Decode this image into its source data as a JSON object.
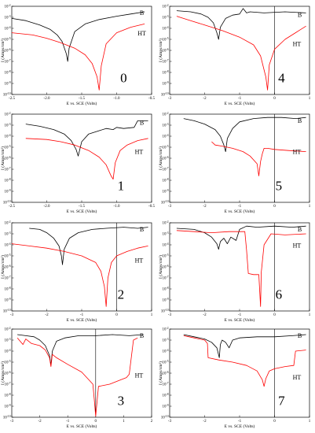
{
  "chart_data": [
    {
      "type": "line",
      "panel_label": "0",
      "xlabel": "E vs. SCE (Volts)",
      "ylabel": "I (Amps/cm²)",
      "xlim": [
        -2.5,
        -0.5
      ],
      "ylim_log10": [
        -10,
        -2
      ],
      "xticks": [
        -2.5,
        -2.0,
        -1.5,
        -1.0,
        -0.5
      ],
      "xtick_labels": [
        "-2.5",
        "-2.0",
        "-1.5",
        "-1.0",
        "-0.5"
      ],
      "yticks_log10": [
        -10,
        -9,
        -8,
        -7,
        -6,
        -5,
        -4,
        -3,
        -2
      ],
      "vline": null,
      "series": [
        {
          "name": "B",
          "color": "#000000",
          "x": [
            -2.5,
            -2.3,
            -2.1,
            -1.95,
            -1.85,
            -1.78,
            -1.72,
            -1.7,
            -1.68,
            -1.6,
            -1.45,
            -1.25,
            -1.0,
            -0.8,
            -0.6
          ],
          "y": [
            -3.1,
            -3.3,
            -3.7,
            -4.1,
            -4.6,
            -5.2,
            -6.3,
            -7.0,
            -5.8,
            -4.3,
            -3.6,
            -3.2,
            -2.9,
            -2.7,
            -2.5
          ]
        },
        {
          "name": "HT",
          "color": "#ff0000",
          "x": [
            -2.5,
            -2.2,
            -2.0,
            -1.8,
            -1.6,
            -1.45,
            -1.35,
            -1.28,
            -1.25,
            -1.22,
            -1.15,
            -1.0,
            -0.8,
            -0.6
          ],
          "y": [
            -4.4,
            -4.6,
            -4.9,
            -5.3,
            -5.8,
            -6.4,
            -7.2,
            -8.4,
            -9.6,
            -7.4,
            -5.4,
            -4.4,
            -3.9,
            -3.6
          ]
        }
      ]
    },
    {
      "type": "line",
      "panel_label": "4",
      "xlabel": "E vs. SCE (Volts)",
      "ylabel": "I (Amps/cm²)",
      "xlim": [
        -3,
        1
      ],
      "ylim_log10": [
        -10,
        -2
      ],
      "xticks": [
        -3,
        -2,
        -1,
        0,
        1
      ],
      "xtick_labels": [
        "-3",
        "-2",
        "-1",
        "0",
        "1"
      ],
      "yticks_log10": [
        -10,
        -9,
        -8,
        -7,
        -6,
        -5,
        -4,
        -3,
        -2
      ],
      "vline": 0,
      "series": [
        {
          "name": "B",
          "color": "#000000",
          "x": [
            -2.8,
            -2.4,
            -2.1,
            -1.9,
            -1.75,
            -1.65,
            -1.6,
            -1.55,
            -1.4,
            -1.2,
            -1.0,
            -0.9,
            -0.8,
            -0.7,
            -0.3,
            0.3,
            0.9
          ],
          "y": [
            -2.4,
            -2.5,
            -2.7,
            -3.0,
            -3.5,
            -4.4,
            -5.0,
            -3.9,
            -3.1,
            -2.8,
            -2.7,
            -2.2,
            -2.6,
            -2.5,
            -2.6,
            -2.5,
            -2.6
          ]
        },
        {
          "name": "HT",
          "color": "#ff0000",
          "x": [
            -2.8,
            -2.4,
            -2.0,
            -1.5,
            -1.0,
            -0.6,
            -0.4,
            -0.25,
            -0.2,
            -0.15,
            0.0,
            0.3,
            0.6,
            0.9
          ],
          "y": [
            -2.9,
            -3.3,
            -3.7,
            -4.2,
            -4.8,
            -5.5,
            -6.5,
            -8.4,
            -9.6,
            -7.3,
            -5.9,
            -5.0,
            -4.4,
            -3.8
          ]
        }
      ]
    },
    {
      "type": "line",
      "panel_label": "1",
      "xlabel": "E vs. SCE (Volts)",
      "ylabel": "I (Amps/cm²)",
      "xlim": [
        -2.5,
        -0.5
      ],
      "ylim_log10": [
        -10,
        -2
      ],
      "xticks": [
        -2.5,
        -2.0,
        -1.5,
        -1.0,
        -0.5
      ],
      "xtick_labels": [
        "-2.5",
        "-2.0",
        "-1.5",
        "-1.0",
        "-0.5"
      ],
      "yticks_log10": [
        -10,
        -9,
        -8,
        -7,
        -6,
        -5,
        -4,
        -3,
        -2
      ],
      "vline": null,
      "series": [
        {
          "name": "B",
          "color": "#000000",
          "x": [
            -2.3,
            -2.1,
            -1.9,
            -1.75,
            -1.65,
            -1.58,
            -1.55,
            -1.5,
            -1.4,
            -1.25,
            -1.15,
            -1.05,
            -1.0,
            -0.9,
            -0.75,
            -0.7,
            -0.55
          ],
          "y": [
            -2.9,
            -3.1,
            -3.4,
            -3.8,
            -4.4,
            -5.2,
            -5.8,
            -4.5,
            -3.8,
            -3.5,
            -3.3,
            -3.4,
            -3.2,
            -3.3,
            -3.2,
            -2.6,
            -2.6
          ]
        },
        {
          "name": "HT",
          "color": "#ff0000",
          "x": [
            -2.3,
            -2.0,
            -1.8,
            -1.6,
            -1.4,
            -1.25,
            -1.15,
            -1.08,
            -1.05,
            -1.02,
            -0.95,
            -0.85,
            -0.7,
            -0.55
          ],
          "y": [
            -4.2,
            -4.3,
            -4.5,
            -4.8,
            -5.3,
            -5.9,
            -6.6,
            -7.6,
            -7.9,
            -6.4,
            -5.3,
            -4.8,
            -4.4,
            -4.2
          ]
        }
      ]
    },
    {
      "type": "line",
      "panel_label": "5",
      "xlabel": "E vs. SCE (Volts)",
      "ylabel": "I (Amps/cm²)",
      "xlim": [
        -3,
        1
      ],
      "ylim_log10": [
        -10,
        -2
      ],
      "xticks": [
        -3,
        -2,
        -1,
        0,
        1
      ],
      "xtick_labels": [
        "-3",
        "-2",
        "-1",
        "0",
        "1"
      ],
      "yticks_log10": [
        -10,
        -9,
        -8,
        -7,
        -6,
        -5,
        -4,
        -3,
        -2
      ],
      "vline": 0,
      "series": [
        {
          "name": "B",
          "color": "#000000",
          "x": [
            -2.6,
            -2.3,
            -2.0,
            -1.7,
            -1.55,
            -1.45,
            -1.4,
            -1.35,
            -1.2,
            -1.0,
            -0.6,
            -0.2,
            0.2,
            0.6,
            0.9
          ],
          "y": [
            -2.4,
            -2.6,
            -2.9,
            -3.4,
            -4.0,
            -4.8,
            -5.4,
            -4.2,
            -3.3,
            -2.7,
            -2.4,
            -2.3,
            -2.3,
            -2.4,
            -2.3
          ]
        },
        {
          "name": "HT",
          "color": "#ff0000",
          "x": [
            -1.8,
            -1.7,
            -1.5,
            -1.2,
            -0.9,
            -0.7,
            -0.5,
            -0.45,
            -0.4,
            -0.35,
            -0.3,
            -0.2,
            0.0,
            0.4,
            0.9
          ],
          "y": [
            -4.5,
            -4.8,
            -4.9,
            -5.1,
            -5.4,
            -5.8,
            -6.5,
            -7.6,
            -6.3,
            -5.6,
            -5.1,
            -5.1,
            -5.2,
            -5.3,
            -5.4
          ]
        }
      ]
    },
    {
      "type": "line",
      "panel_label": "2",
      "xlabel": "E vs. SCE (Volts)",
      "ylabel": "I (Amps/cm²)",
      "xlim": [
        -3,
        1
      ],
      "ylim_log10": [
        -10,
        -2
      ],
      "xticks": [
        -3,
        -2,
        -1,
        0,
        1
      ],
      "xtick_labels": [
        "-3",
        "-2",
        "-1",
        "0",
        "1"
      ],
      "yticks_log10": [
        -10,
        -9,
        -8,
        -7,
        -6,
        -5,
        -4,
        -3,
        -2
      ],
      "vline": 0,
      "series": [
        {
          "name": "B",
          "color": "#000000",
          "x": [
            -2.5,
            -2.2,
            -2.0,
            -1.8,
            -1.65,
            -1.58,
            -1.55,
            -1.5,
            -1.35,
            -1.1,
            -0.7,
            -0.3,
            0.2,
            0.6,
            0.9
          ],
          "y": [
            -2.5,
            -2.6,
            -2.9,
            -3.4,
            -4.1,
            -5.0,
            -5.8,
            -4.4,
            -3.4,
            -2.9,
            -2.6,
            -2.5,
            -2.4,
            -2.5,
            -2.4
          ]
        },
        {
          "name": "HT",
          "color": "#ff0000",
          "x": [
            -3.0,
            -2.5,
            -2.0,
            -1.5,
            -1.0,
            -0.6,
            -0.45,
            -0.35,
            -0.3,
            -0.25,
            -0.15,
            0.0,
            0.3,
            0.6,
            0.9
          ],
          "y": [
            -3.9,
            -4.1,
            -4.3,
            -4.6,
            -5.0,
            -5.6,
            -6.4,
            -7.8,
            -9.6,
            -7.0,
            -5.6,
            -5.0,
            -4.6,
            -4.3,
            -4.1
          ]
        }
      ]
    },
    {
      "type": "line",
      "panel_label": "6",
      "xlabel": "E vs. SCE (Volts)",
      "ylabel": "I (Amps/cm²)",
      "xlim": [
        -3,
        1
      ],
      "ylim_log10": [
        -10,
        -2
      ],
      "xticks": [
        -3,
        -2,
        -1,
        0,
        1
      ],
      "xtick_labels": [
        "-3",
        "-2",
        "-1",
        "0",
        "1"
      ],
      "yticks_log10": [
        -10,
        -9,
        -8,
        -7,
        -6,
        -5,
        -4,
        -3,
        -2
      ],
      "vline": 0,
      "series": [
        {
          "name": "B",
          "color": "#000000",
          "x": [
            -2.8,
            -2.3,
            -2.0,
            -1.8,
            -1.65,
            -1.6,
            -1.55,
            -1.45,
            -1.35,
            -1.25,
            -1.1,
            -1.0,
            -0.8,
            -0.5,
            0.0,
            0.5,
            0.9
          ],
          "y": [
            -2.5,
            -2.6,
            -2.9,
            -3.3,
            -3.9,
            -4.4,
            -3.7,
            -3.4,
            -3.9,
            -3.3,
            -3.6,
            -2.6,
            -2.3,
            -2.4,
            -2.3,
            -2.4,
            -2.3
          ]
        },
        {
          "name": "HT",
          "color": "#ff0000",
          "x": [
            -2.8,
            -2.3,
            -1.8,
            -1.3,
            -0.85,
            -0.8,
            -0.75,
            -0.6,
            -0.45,
            -0.4,
            -0.38,
            -0.3,
            -0.1,
            0.3,
            0.9
          ],
          "y": [
            -2.7,
            -2.8,
            -2.9,
            -2.8,
            -2.8,
            -4.5,
            -6.6,
            -6.7,
            -6.7,
            -9.6,
            -6.5,
            -4.0,
            -3.0,
            -3.1,
            -3.0
          ]
        }
      ]
    },
    {
      "type": "line",
      "panel_label": "3",
      "xlabel": "E vs. SCE (Volts)",
      "ylabel": "I (Amps/cm²)",
      "xlim": [
        -3,
        2
      ],
      "ylim_log10": [
        -10,
        -2
      ],
      "xticks": [
        -3,
        -2,
        -1,
        0,
        1,
        2
      ],
      "xtick_labels": [
        "-3",
        "-2",
        "-1",
        "0",
        "1",
        "2"
      ],
      "yticks_log10": [
        -10,
        -9,
        -8,
        -7,
        -6,
        -5,
        -4,
        -3,
        -2
      ],
      "vline": 0,
      "series": [
        {
          "name": "B",
          "color": "#000000",
          "x": [
            -2.8,
            -2.5,
            -2.2,
            -2.0,
            -1.8,
            -1.65,
            -1.6,
            -1.55,
            -1.4,
            -1.1,
            -0.6,
            0.0,
            0.6,
            1.2,
            1.7
          ],
          "y": [
            -2.5,
            -2.6,
            -2.7,
            -3.0,
            -3.5,
            -4.4,
            -5.3,
            -4.0,
            -3.1,
            -2.8,
            -2.6,
            -2.6,
            -2.5,
            -2.6,
            -2.5
          ]
        },
        {
          "name": "HT",
          "color": "#ff0000",
          "x": [
            -2.8,
            -2.6,
            -2.5,
            -2.3,
            -2.0,
            -1.8,
            -1.65,
            -1.6,
            -1.55,
            -1.4,
            -1.0,
            -0.5,
            -0.1,
            -0.05,
            0.0,
            0.1,
            0.5,
            0.9,
            1.1,
            1.2,
            1.35,
            1.5
          ],
          "y": [
            -2.8,
            -3.4,
            -2.9,
            -3.3,
            -3.5,
            -3.9,
            -4.6,
            -5.4,
            -4.3,
            -4.6,
            -5.2,
            -5.9,
            -7.0,
            -8.4,
            -9.9,
            -7.2,
            -7.0,
            -6.6,
            -6.4,
            -6.1,
            -3.0,
            -2.8
          ]
        }
      ]
    },
    {
      "type": "line",
      "panel_label": "7",
      "xlabel": "E vs. SCE (Volts)",
      "ylabel": "I (Amps/cm²)",
      "xlim": [
        -3,
        1
      ],
      "ylim_log10": [
        -10,
        -2
      ],
      "xticks": [
        -3,
        -2,
        -1,
        0,
        1
      ],
      "xtick_labels": [
        "-3",
        "-2",
        "-1",
        "0",
        "1"
      ],
      "yticks_log10": [
        -10,
        -9,
        -8,
        -7,
        -6,
        -5,
        -4,
        -3,
        -2
      ],
      "vline": 0,
      "series": [
        {
          "name": "B",
          "color": "#000000",
          "x": [
            -2.6,
            -2.3,
            -2.0,
            -1.8,
            -1.65,
            -1.58,
            -1.55,
            -1.5,
            -1.4,
            -1.3,
            -1.2,
            -1.0,
            -0.5,
            0.0,
            0.5,
            0.9
          ],
          "y": [
            -2.5,
            -2.7,
            -2.9,
            -3.2,
            -3.7,
            -4.6,
            -3.4,
            -3.0,
            -3.2,
            -3.7,
            -3.0,
            -2.8,
            -2.7,
            -2.7,
            -2.6,
            -2.5
          ]
        },
        {
          "name": "HT",
          "color": "#ff0000",
          "x": [
            -2.6,
            -2.3,
            -2.0,
            -1.92,
            -1.9,
            -1.6,
            -1.2,
            -0.8,
            -0.5,
            -0.35,
            -0.3,
            -0.25,
            -0.15,
            0.0,
            0.3,
            0.55,
            0.6,
            0.9
          ],
          "y": [
            -2.6,
            -2.8,
            -3.0,
            -3.3,
            -4.6,
            -4.8,
            -5.0,
            -5.3,
            -5.8,
            -6.6,
            -7.2,
            -6.5,
            -5.8,
            -5.6,
            -5.4,
            -5.3,
            -4.0,
            -3.9
          ]
        }
      ]
    }
  ]
}
